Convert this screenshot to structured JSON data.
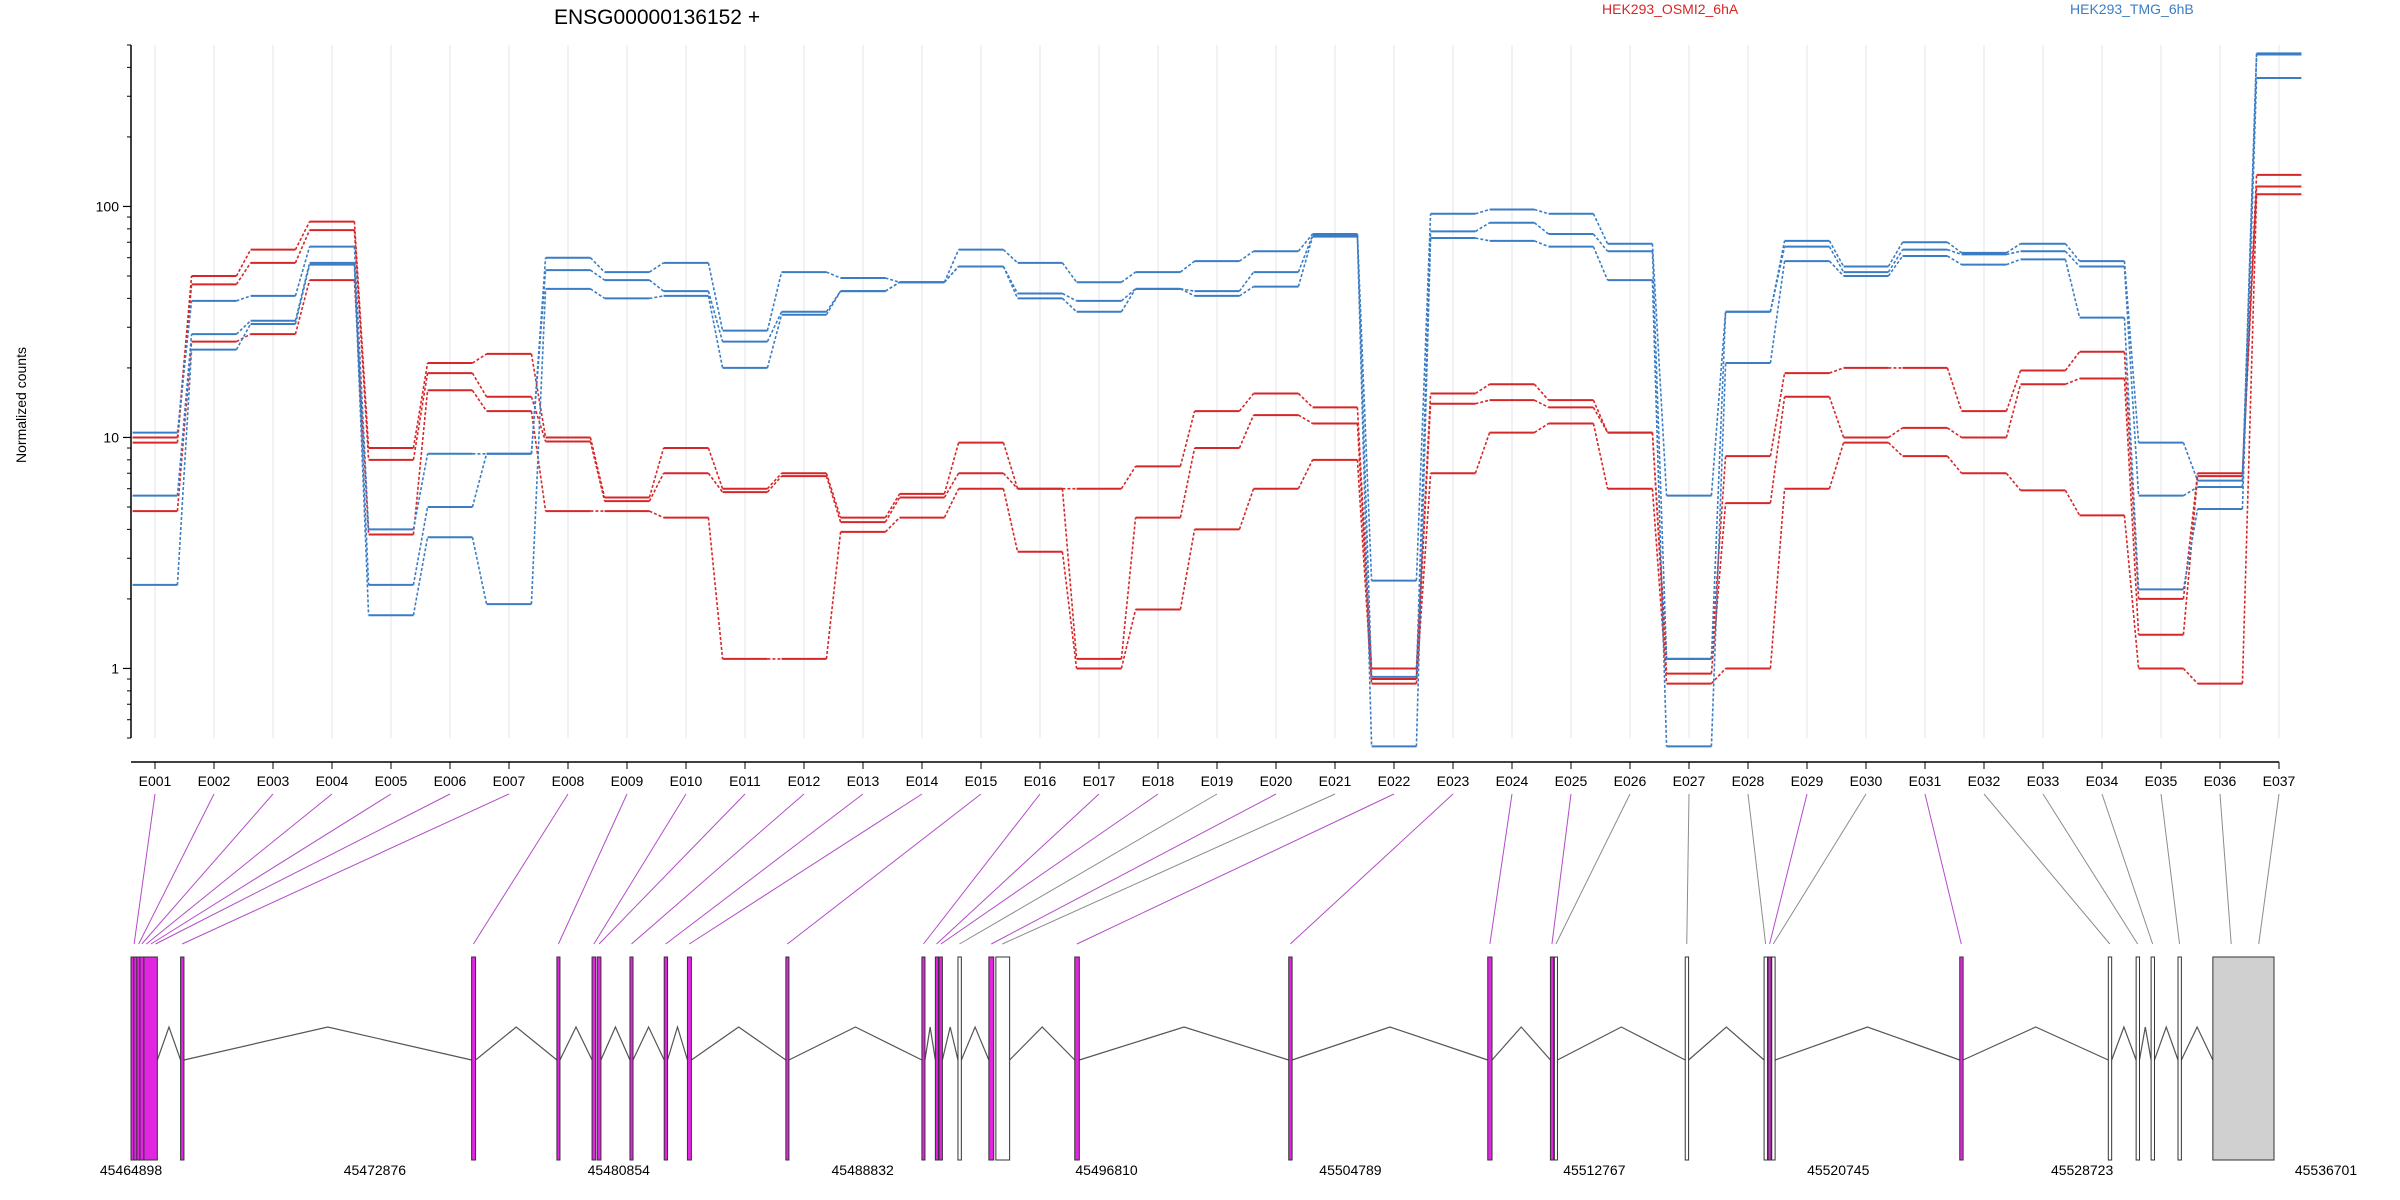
{
  "chart_data": {
    "type": "line",
    "title": "ENSG00000136152 +",
    "ylabel": "Normalized counts",
    "y_scale": "log10",
    "ylim": [
      0.5,
      500
    ],
    "y_ticks": [
      1,
      10,
      100
    ],
    "y_tick_labels": [
      "1",
      "10",
      "100"
    ],
    "categories": [
      "E001",
      "E002",
      "E003",
      "E004",
      "E005",
      "E006",
      "E007",
      "E008",
      "E009",
      "E010",
      "E011",
      "E012",
      "E013",
      "E014",
      "E015",
      "E016",
      "E017",
      "E018",
      "E019",
      "E020",
      "E021",
      "E022",
      "E023",
      "E024",
      "E025",
      "E026",
      "E027",
      "E028",
      "E029",
      "E030",
      "E031",
      "E032",
      "E033",
      "E034",
      "E035",
      "E036",
      "E037"
    ],
    "legend": [
      {
        "name": "HEK293_OSMI2_6hA",
        "color": "#d62728"
      },
      {
        "name": "HEK293_TMG_6hB",
        "color": "#3b7dc4"
      }
    ],
    "series": [
      {
        "group": "HEK293_OSMI2_6hA",
        "color": "#d62728",
        "values": [
          10,
          50,
          65,
          86,
          9,
          21,
          23,
          10,
          5.5,
          9,
          6,
          7,
          4.5,
          5.7,
          9.5,
          6,
          6,
          7.5,
          13,
          15.5,
          13.5,
          1.0,
          15.5,
          17,
          14.5,
          10.5,
          1.1,
          8.3,
          19,
          20,
          20,
          13,
          19.5,
          23.5,
          2.0,
          7,
          137
        ]
      },
      {
        "group": "HEK293_OSMI2_6hA",
        "color": "#d62728",
        "values": [
          9.5,
          46,
          57,
          79,
          8,
          19,
          15,
          9.6,
          5.3,
          7,
          5.8,
          6.8,
          4.3,
          5.5,
          7,
          6,
          1.1,
          4.5,
          9,
          12.5,
          11.5,
          0.9,
          14,
          14.5,
          13.5,
          10.5,
          0.95,
          5.2,
          15,
          10,
          11,
          10,
          17,
          18,
          1.4,
          6.8,
          122
        ]
      },
      {
        "group": "HEK293_OSMI2_6hA",
        "color": "#d62728",
        "values": [
          4.8,
          26,
          28,
          48,
          3.8,
          16,
          13,
          4.8,
          4.8,
          4.5,
          1.1,
          1.1,
          3.9,
          4.5,
          6,
          3.2,
          1.0,
          1.8,
          4,
          6,
          8,
          0.86,
          7,
          10.5,
          11.5,
          6,
          0.86,
          1.0,
          6,
          9.5,
          8.3,
          7,
          5.9,
          4.6,
          1.0,
          0.86,
          113
        ]
      },
      {
        "group": "HEK293_TMG_6hB",
        "color": "#3b7dc4",
        "values": [
          10.5,
          39,
          41,
          67,
          4,
          8.5,
          8.5,
          60,
          52,
          57,
          29,
          52,
          49,
          47,
          65,
          57,
          47,
          52,
          58,
          64,
          76,
          2.4,
          93,
          97,
          93,
          69,
          5.6,
          35,
          71,
          55,
          70,
          63,
          69,
          58,
          9.5,
          6.5,
          460
        ]
      },
      {
        "group": "HEK293_TMG_6hB",
        "color": "#3b7dc4",
        "values": [
          5.6,
          28,
          32,
          57,
          2.3,
          5,
          8.5,
          53,
          48,
          43,
          26,
          35,
          43,
          47,
          55,
          42,
          39,
          44,
          43,
          52,
          75,
          0.92,
          78,
          85,
          76,
          64,
          1.1,
          35,
          67,
          52,
          65,
          62,
          64,
          55,
          5.6,
          6.1,
          455
        ]
      },
      {
        "group": "HEK293_TMG_6hB",
        "color": "#3b7dc4",
        "values": [
          2.3,
          24,
          31,
          56,
          1.7,
          3.7,
          1.9,
          44,
          40,
          41,
          20,
          34,
          43,
          47,
          55,
          40,
          35,
          44,
          41,
          45,
          74,
          0.46,
          73,
          71,
          67,
          48,
          0.46,
          21,
          58,
          50,
          61,
          56,
          59,
          33,
          2.2,
          4.9,
          360
        ]
      }
    ],
    "gene_model": {
      "coordinate_ticks": [
        "45464898",
        "45472876",
        "45480854",
        "45488832",
        "45496810",
        "45504789",
        "45512767",
        "45520745",
        "45528723",
        "45536701"
      ],
      "exons": [
        {
          "start": 45464898,
          "end": 45464990,
          "highlight": true
        },
        {
          "start": 45464990,
          "end": 45465090,
          "highlight": true
        },
        {
          "start": 45465090,
          "end": 45465190,
          "highlight": true
        },
        {
          "start": 45465190,
          "end": 45465320,
          "highlight": true
        },
        {
          "start": 45465320,
          "end": 45465760,
          "highlight": true
        },
        {
          "start": 45466520,
          "end": 45466630,
          "highlight": true
        },
        {
          "start": 45476040,
          "end": 45476170,
          "highlight": true
        },
        {
          "start": 45478830,
          "end": 45478930,
          "highlight": true
        },
        {
          "start": 45479980,
          "end": 45480100,
          "highlight": true
        },
        {
          "start": 45480150,
          "end": 45480270,
          "highlight": true
        },
        {
          "start": 45481220,
          "end": 45481320,
          "highlight": true
        },
        {
          "start": 45482340,
          "end": 45482450,
          "highlight": true
        },
        {
          "start": 45483100,
          "end": 45483230,
          "highlight": true
        },
        {
          "start": 45486320,
          "end": 45486420,
          "highlight": true
        },
        {
          "start": 45490770,
          "end": 45490870,
          "highlight": true
        },
        {
          "start": 45491210,
          "end": 45491290,
          "highlight": true
        },
        {
          "start": 45491330,
          "end": 45491440,
          "highlight": true
        },
        {
          "start": 45491950,
          "end": 45492060,
          "highlight": false
        },
        {
          "start": 45492960,
          "end": 45493120,
          "highlight": true
        },
        {
          "start": 45493190,
          "end": 45493640,
          "highlight": false
        },
        {
          "start": 45495770,
          "end": 45495920,
          "highlight": true
        },
        {
          "start": 45502770,
          "end": 45502880,
          "highlight": true
        },
        {
          "start": 45509280,
          "end": 45509420,
          "highlight": true
        },
        {
          "start": 45511330,
          "end": 45511440,
          "highlight": true
        },
        {
          "start": 45511460,
          "end": 45511560,
          "highlight": false
        },
        {
          "start": 45515740,
          "end": 45515850,
          "highlight": false
        },
        {
          "start": 45518320,
          "end": 45518430,
          "highlight": false
        },
        {
          "start": 45518450,
          "end": 45518550,
          "highlight": true
        },
        {
          "start": 45518570,
          "end": 45518680,
          "highlight": false
        },
        {
          "start": 45524720,
          "end": 45524830,
          "highlight": true
        },
        {
          "start": 45529580,
          "end": 45529690,
          "highlight": false
        },
        {
          "start": 45530490,
          "end": 45530600,
          "highlight": false
        },
        {
          "start": 45530980,
          "end": 45531090,
          "highlight": false
        },
        {
          "start": 45531860,
          "end": 45531970,
          "highlight": false
        },
        {
          "start": 45533000,
          "end": 45535000,
          "highlight": false
        }
      ],
      "connector_targets": [
        45465000,
        45465150,
        45465250,
        45465400,
        45465550,
        45465700,
        45466570,
        45476100,
        45478880,
        45480040,
        45480210,
        45481270,
        45482390,
        45483160,
        45486370,
        45490820,
        45491250,
        45491390,
        45492000,
        45493040,
        45493400,
        45495840,
        45502820,
        45509350,
        45511380,
        45511510,
        45515790,
        45518370,
        45518500,
        45518620,
        45524770,
        45529630,
        45530540,
        45531030,
        45531910,
        45533600,
        45534500
      ],
      "colors": {
        "highlight": "#e026e0",
        "highlight_connector": "#b44cc8",
        "plain_connector": "#8c8c8c",
        "last_exon_fill": "#d0d0d0"
      }
    }
  }
}
